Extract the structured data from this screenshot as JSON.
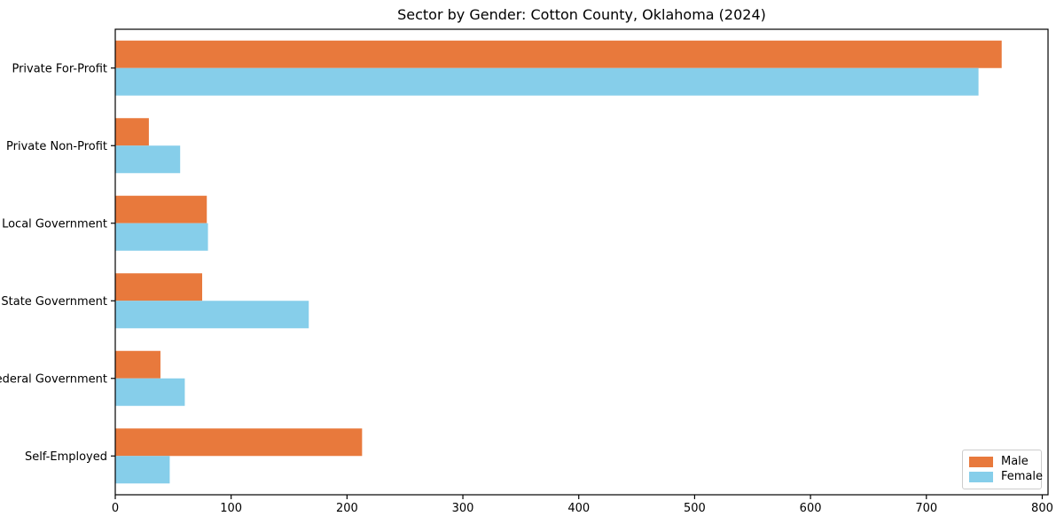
{
  "title": "Sector by Gender: Cotton County, Oklahoma (2024)",
  "colors": {
    "male": "#E8793C",
    "female": "#86CEEA",
    "axis": "#000000",
    "tick_label": "#000000",
    "legend_border": "#cccccc",
    "background": "#ffffff"
  },
  "chart_data": {
    "type": "bar",
    "orientation": "horizontal",
    "title": "Sector by Gender: Cotton County, Oklahoma (2024)",
    "categories": [
      "Private For-Profit",
      "Private Non-Profit",
      "Local Government",
      "State Government",
      "Federal Government",
      "Self-Employed"
    ],
    "series": [
      {
        "name": "Male",
        "color": "#E8793C",
        "values": [
          765,
          29,
          79,
          75,
          39,
          213
        ]
      },
      {
        "name": "Female",
        "color": "#86CEEA",
        "values": [
          745,
          56,
          80,
          167,
          60,
          47
        ]
      }
    ],
    "xlabel": "",
    "ylabel": "",
    "xlim": [
      0,
      805
    ],
    "x_ticks": [
      0,
      100,
      200,
      300,
      400,
      500,
      600,
      700,
      800
    ],
    "legend_position": "lower right",
    "grid": false
  }
}
